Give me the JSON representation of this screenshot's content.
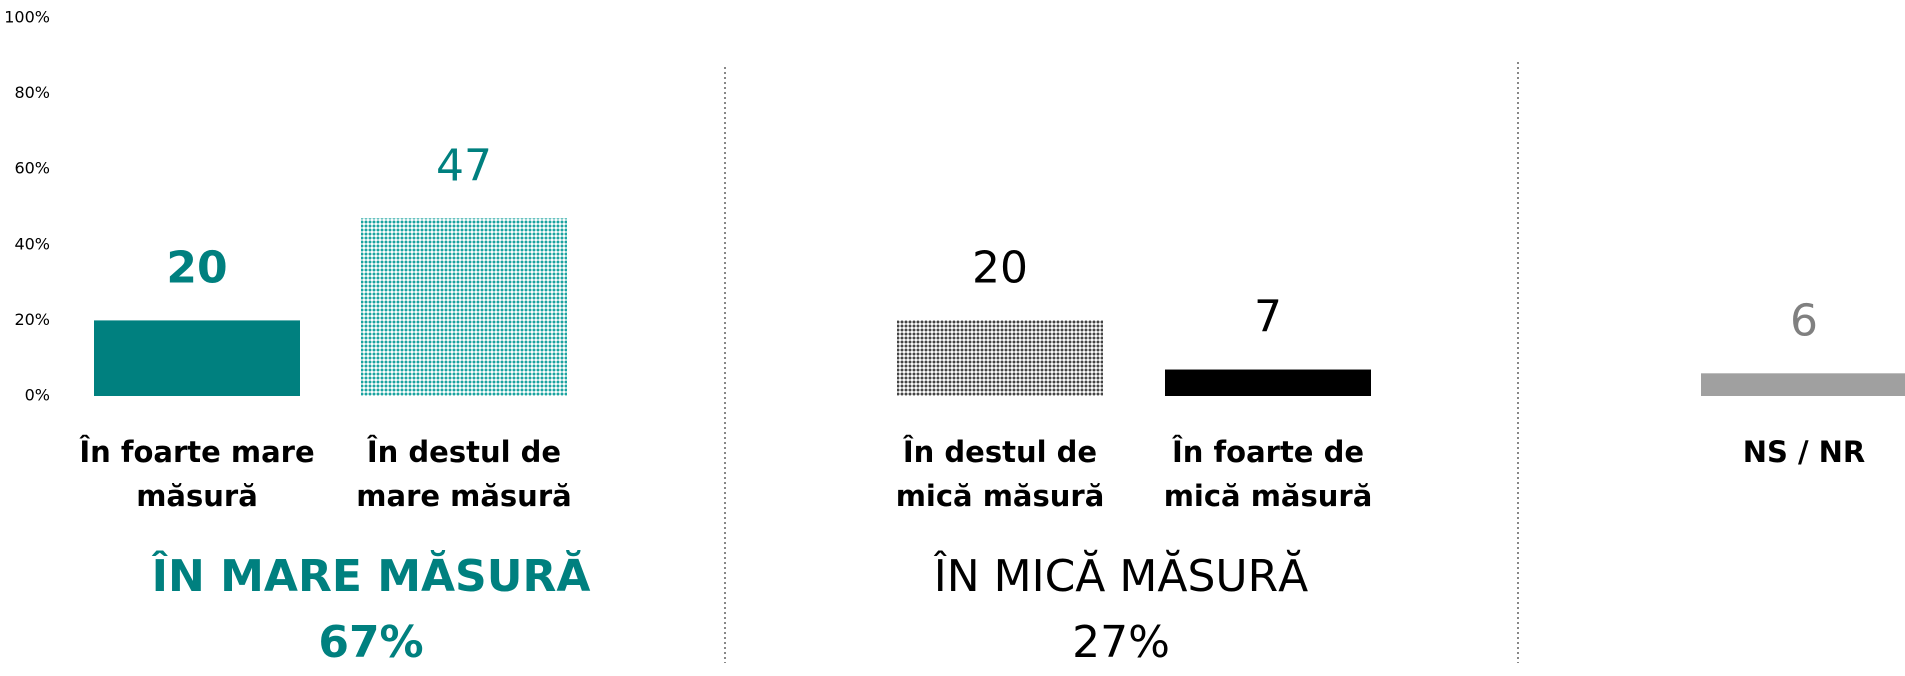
{
  "chart_data": {
    "type": "bar",
    "categories": [
      "În foarte mare măsură",
      "În destul de mare măsură",
      "În destul de mică măsură",
      "În foarte de mică măsură",
      "NS / NR"
    ],
    "values": [
      20,
      47,
      20,
      7,
      6
    ],
    "colors": [
      "#00807f",
      "#1aa3a0",
      "#444444",
      "#000000",
      "#a0a0a0"
    ],
    "patterned": [
      false,
      true,
      true,
      false,
      false
    ],
    "label_colors": [
      "#00807f",
      "#00807f",
      "#000000",
      "#000000",
      "#808080"
    ],
    "ylim": [
      0,
      100
    ],
    "yticks": [
      {
        "value": 0,
        "label": "0%"
      },
      {
        "value": 20,
        "label": "20%"
      },
      {
        "value": 40,
        "label": "40%"
      },
      {
        "value": 60,
        "label": "60%"
      },
      {
        "value": 80,
        "label": "80%"
      },
      {
        "value": 100,
        "label": "100%"
      }
    ],
    "groups": [
      {
        "name": "ÎN MARE MĂSURĂ",
        "label": "67%",
        "color": "#00807f"
      },
      {
        "name": "ÎN MICĂ MĂSURĂ",
        "label": "27%",
        "color": "#000000"
      }
    ]
  }
}
